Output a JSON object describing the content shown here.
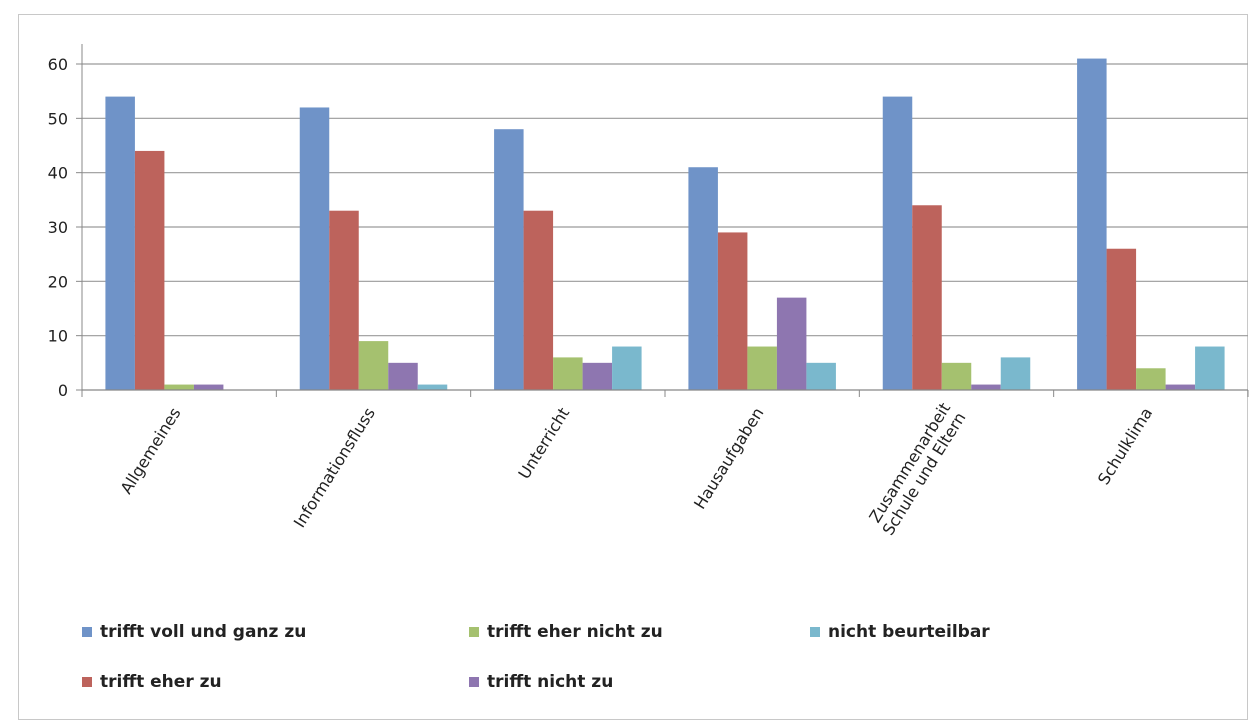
{
  "chart_data": {
    "type": "bar",
    "categories": [
      "Allgemeines",
      "Informationsfluss",
      "Unterricht",
      "Hausaufgaben",
      "Zusammenarbeit\nSchule und Eltern",
      "Schulklima"
    ],
    "series": [
      {
        "name": "trifft voll und ganz zu",
        "color": "#6f93c8",
        "values": [
          54,
          52,
          48,
          41,
          54,
          61
        ]
      },
      {
        "name": "trifft eher zu",
        "color": "#bd635c",
        "values": [
          44,
          33,
          33,
          29,
          34,
          26
        ]
      },
      {
        "name": "trifft eher nicht zu",
        "color": "#a5c16f",
        "values": [
          1,
          9,
          6,
          8,
          5,
          4
        ]
      },
      {
        "name": "trifft nicht zu",
        "color": "#8e76b0",
        "values": [
          1,
          5,
          5,
          17,
          1,
          1
        ]
      },
      {
        "name": "nicht beurteilbar",
        "color": "#7ab8cd",
        "values": [
          0,
          1,
          8,
          5,
          6,
          8
        ]
      }
    ],
    "yticks": [
      "0",
      "10",
      "20",
      "30",
      "40",
      "50",
      "60"
    ],
    "ylim": [
      0,
      60
    ],
    "grid": true,
    "legend_position": "bottom"
  }
}
